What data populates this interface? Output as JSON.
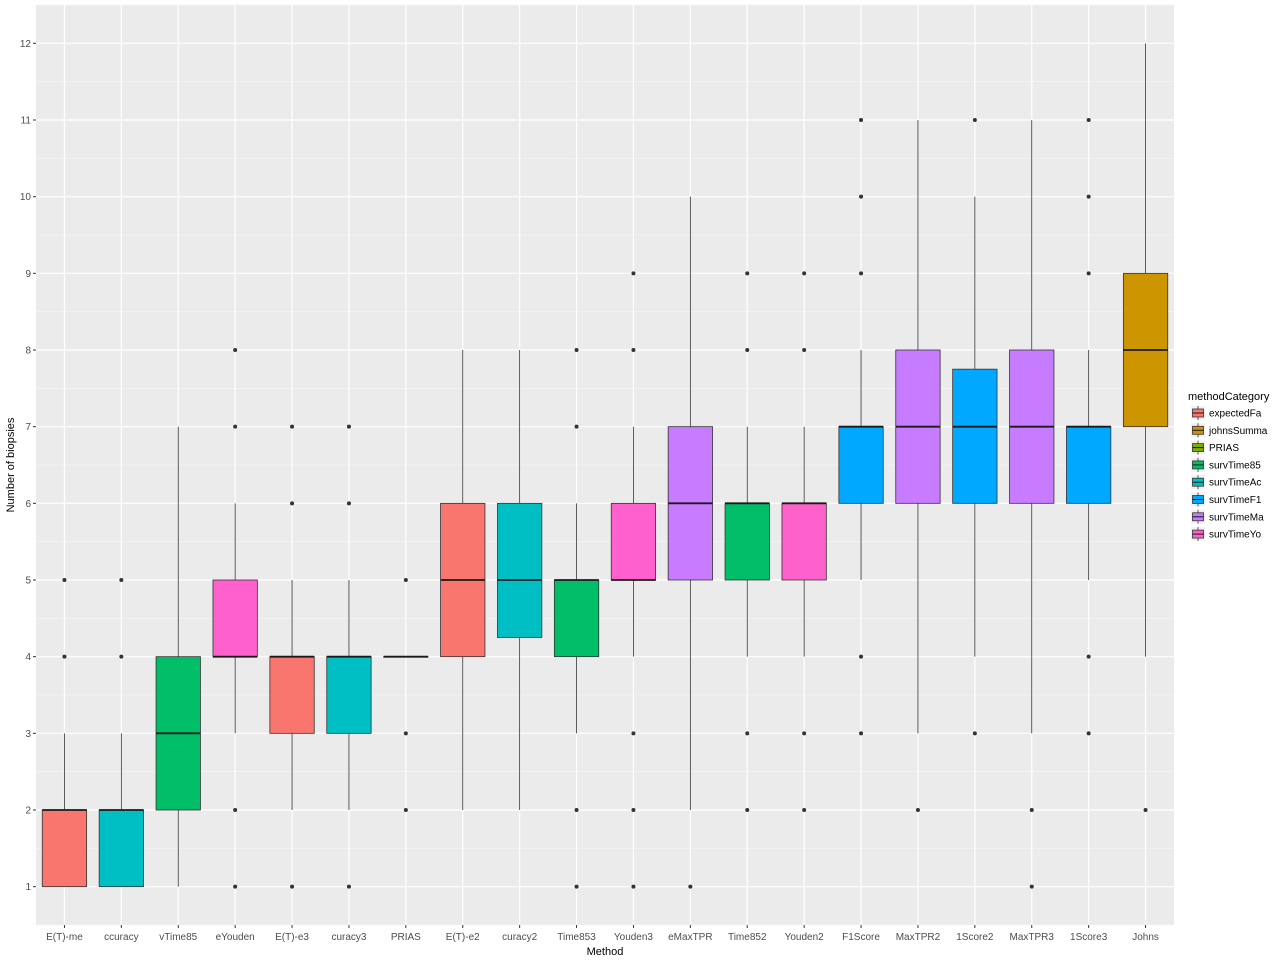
{
  "chart_data": {
    "type": "boxplot",
    "xlabel": "Method",
    "ylabel": "Number of biopsies",
    "ylim": [
      0.5,
      12.5
    ],
    "yticks": [
      1,
      2,
      3,
      4,
      5,
      6,
      7,
      8,
      9,
      10,
      11,
      12
    ],
    "grid": true,
    "legend": {
      "title": "methodCategory",
      "position": "right",
      "entries": [
        {
          "label": "expectedFa",
          "color": "#F8766D"
        },
        {
          "label": "johnsSumma",
          "color": "#CD9600"
        },
        {
          "label": "PRIAS",
          "color": "#7CAE00"
        },
        {
          "label": "survTime85",
          "color": "#00BE67"
        },
        {
          "label": "survTimeAc",
          "color": "#00BFC4"
        },
        {
          "label": "survTimeF1",
          "color": "#00A9FF"
        },
        {
          "label": "survTimeMa",
          "color": "#C77CFF"
        },
        {
          "label": "survTimeYo",
          "color": "#FF61CC"
        }
      ]
    },
    "boxes": [
      {
        "category": "E(T)-me",
        "group": "expectedFa",
        "color": "#F8766D",
        "lower_whisker": 1,
        "q1": 1,
        "median": 2,
        "q3": 2,
        "upper_whisker": 3,
        "outliers": [
          4,
          5
        ]
      },
      {
        "category": "ccuracy",
        "group": "survTimeAc",
        "color": "#00BFC4",
        "lower_whisker": 1,
        "q1": 1,
        "median": 2,
        "q3": 2,
        "upper_whisker": 3,
        "outliers": [
          4,
          5
        ]
      },
      {
        "category": "vTime85",
        "group": "survTime85",
        "color": "#00BE67",
        "lower_whisker": 1,
        "q1": 2,
        "median": 3,
        "q3": 4,
        "upper_whisker": 7,
        "outliers": []
      },
      {
        "category": "eYouden",
        "group": "survTimeYo",
        "color": "#FF61CC",
        "lower_whisker": 3,
        "q1": 4,
        "median": 4,
        "q3": 5,
        "upper_whisker": 6,
        "outliers": [
          1,
          2,
          7,
          8
        ]
      },
      {
        "category": "E(T)-e3",
        "group": "expectedFa",
        "color": "#F8766D",
        "lower_whisker": 2,
        "q1": 3,
        "median": 4,
        "q3": 4,
        "upper_whisker": 5,
        "outliers": [
          1,
          6,
          7
        ]
      },
      {
        "category": "curacy3",
        "group": "survTimeAc",
        "color": "#00BFC4",
        "lower_whisker": 2,
        "q1": 3,
        "median": 4,
        "q3": 4,
        "upper_whisker": 5,
        "outliers": [
          1,
          6,
          7
        ]
      },
      {
        "category": "PRIAS",
        "group": "PRIAS",
        "color": "#7CAE00",
        "lower_whisker": 4,
        "q1": 4,
        "median": 4,
        "q3": 4,
        "upper_whisker": 4,
        "outliers": [
          2,
          3,
          5
        ]
      },
      {
        "category": "E(T)-e2",
        "group": "expectedFa",
        "color": "#F8766D",
        "lower_whisker": 2,
        "q1": 4,
        "median": 5,
        "q3": 6,
        "upper_whisker": 8,
        "outliers": []
      },
      {
        "category": "curacy2",
        "group": "survTimeAc",
        "color": "#00BFC4",
        "lower_whisker": 2,
        "q1": 4.25,
        "median": 5,
        "q3": 6,
        "upper_whisker": 8,
        "outliers": []
      },
      {
        "category": "Time853",
        "group": "survTime85",
        "color": "#00BE67",
        "lower_whisker": 3,
        "q1": 4,
        "median": 5,
        "q3": 5,
        "upper_whisker": 6,
        "outliers": [
          1,
          2,
          7,
          8
        ]
      },
      {
        "category": "Youden3",
        "group": "survTimeYo",
        "color": "#FF61CC",
        "lower_whisker": 4,
        "q1": 5,
        "median": 5,
        "q3": 6,
        "upper_whisker": 7,
        "outliers": [
          1,
          2,
          3,
          8,
          9
        ]
      },
      {
        "category": "eMaxTPR",
        "group": "survTimeMa",
        "color": "#C77CFF",
        "lower_whisker": 2,
        "q1": 5,
        "median": 6,
        "q3": 7,
        "upper_whisker": 10,
        "outliers": [
          1
        ]
      },
      {
        "category": "Time852",
        "group": "survTime85",
        "color": "#00BE67",
        "lower_whisker": 4,
        "q1": 5,
        "median": 6,
        "q3": 6,
        "upper_whisker": 7,
        "outliers": [
          2,
          3,
          8,
          9
        ]
      },
      {
        "category": "Youden2",
        "group": "survTimeYo",
        "color": "#FF61CC",
        "lower_whisker": 4,
        "q1": 5,
        "median": 6,
        "q3": 6,
        "upper_whisker": 7,
        "outliers": [
          2,
          3,
          8,
          9
        ]
      },
      {
        "category": "F1Score",
        "group": "survTimeF1",
        "color": "#00A9FF",
        "lower_whisker": 5,
        "q1": 6,
        "median": 7,
        "q3": 7,
        "upper_whisker": 8,
        "outliers": [
          3,
          4,
          9,
          10,
          11
        ]
      },
      {
        "category": "MaxTPR2",
        "group": "survTimeMa",
        "color": "#C77CFF",
        "lower_whisker": 3,
        "q1": 6,
        "median": 7,
        "q3": 8,
        "upper_whisker": 11,
        "outliers": [
          2
        ]
      },
      {
        "category": "1Score2",
        "group": "survTimeF1",
        "color": "#00A9FF",
        "lower_whisker": 4,
        "q1": 6,
        "median": 7,
        "q3": 7.75,
        "upper_whisker": 10,
        "outliers": [
          3,
          11
        ]
      },
      {
        "category": "MaxTPR3",
        "group": "survTimeMa",
        "color": "#C77CFF",
        "lower_whisker": 3,
        "q1": 6,
        "median": 7,
        "q3": 8,
        "upper_whisker": 11,
        "outliers": [
          1,
          2
        ]
      },
      {
        "category": "1Score3",
        "group": "survTimeF1",
        "color": "#00A9FF",
        "lower_whisker": 5,
        "q1": 6,
        "median": 7,
        "q3": 7,
        "upper_whisker": 8,
        "outliers": [
          3,
          4,
          9,
          10,
          11
        ]
      },
      {
        "category": "Johns",
        "group": "johnsSumma",
        "color": "#CD9600",
        "lower_whisker": 4,
        "q1": 7,
        "median": 8,
        "q3": 9,
        "upper_whisker": 12,
        "outliers": [
          2
        ]
      }
    ]
  }
}
